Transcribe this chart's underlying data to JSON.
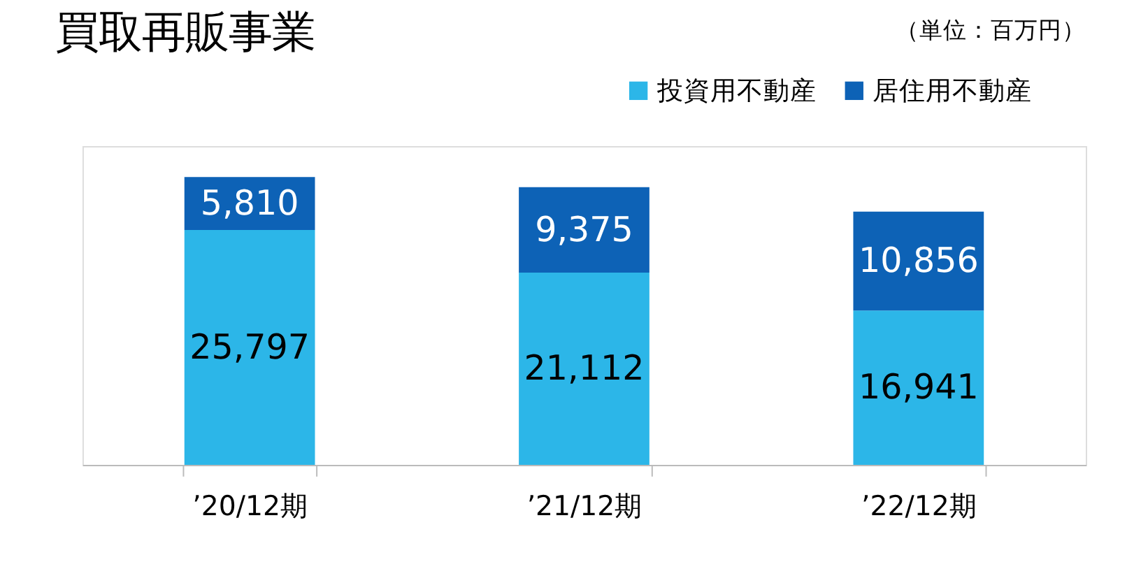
{
  "chart_data": {
    "type": "bar",
    "title": "買取再販事業",
    "annotations": [
      "（単位：百万円）"
    ],
    "categories": [
      "’20/12期",
      "’21/12期",
      "’22/12期"
    ],
    "series": [
      {
        "name": "投資用不動産",
        "color": "#2cb6e8",
        "values": [
          25797,
          21112,
          16941
        ],
        "value_labels": [
          "25,797",
          "21,112",
          "16,941"
        ]
      },
      {
        "name": "居住用不動産",
        "color": "#0d62b6",
        "values": [
          5810,
          9375,
          10856
        ],
        "value_labels": [
          "5,810",
          "9,375",
          "10,856"
        ]
      }
    ],
    "stacked": true,
    "legend": "top right",
    "grid": false
  }
}
